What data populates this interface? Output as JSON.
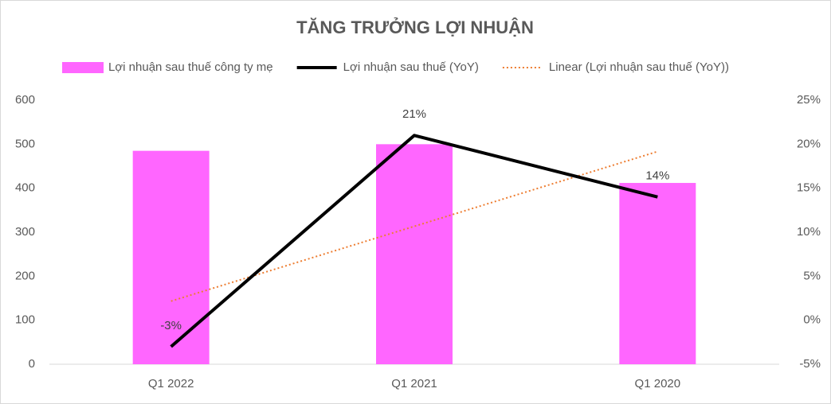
{
  "chart_data": {
    "type": "combo",
    "title": "TĂNG TRƯỞNG LỢI NHUẬN",
    "categories": [
      "Q1 2022",
      "Q1 2021",
      "Q1 2020"
    ],
    "series": [
      {
        "name": "Lợi nhuận sau thuế công ty mẹ",
        "type": "bar",
        "color": "#ff66ff",
        "values": [
          485,
          500,
          412
        ]
      },
      {
        "name": "Lợi nhuận sau thuế (YoY)",
        "type": "line",
        "axis": "y2",
        "color": "#000000",
        "values": [
          -3,
          21,
          14
        ],
        "value_labels": [
          "-3%",
          "21%",
          "14%"
        ]
      },
      {
        "name": "Linear (Lợi nhuận sau thuế (YoY))",
        "type": "trendline",
        "axis": "y2",
        "color": "#ed7d31",
        "values": [
          2.17,
          10.67,
          19.17
        ]
      }
    ],
    "ylim": [
      0,
      600
    ],
    "yticks": [
      0,
      100,
      200,
      300,
      400,
      500,
      600
    ],
    "y2lim": [
      -5,
      25
    ],
    "y2ticks": [
      {
        "value": -5,
        "label": "-5%"
      },
      {
        "value": 0,
        "label": "0%"
      },
      {
        "value": 5,
        "label": "5%"
      },
      {
        "value": 10,
        "label": "10%"
      },
      {
        "value": 15,
        "label": "15%"
      },
      {
        "value": 20,
        "label": "20%"
      },
      {
        "value": 25,
        "label": "25%"
      }
    ],
    "legend": "top"
  }
}
